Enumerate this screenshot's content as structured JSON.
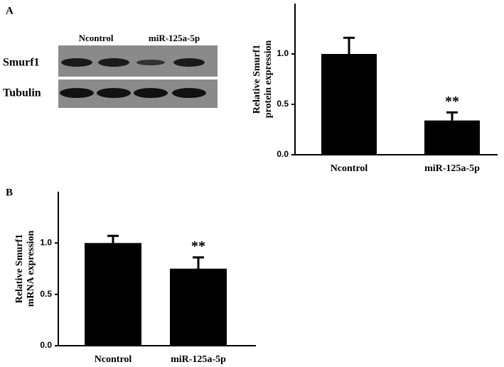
{
  "panel_labels": [
    "A",
    "B"
  ],
  "blot": {
    "column_labels": [
      "Ncontrol",
      "miR-125a-5p"
    ],
    "row_labels": [
      "Smurf1",
      "Tubulin"
    ]
  },
  "chart_data": [
    {
      "type": "bar",
      "ylabel": [
        "Relative Smurf1",
        "protein expression"
      ],
      "categories": [
        "Ncontrol",
        "miR-125a-5p"
      ],
      "values": [
        1.0,
        0.34
      ],
      "errors": [
        0.16,
        0.08
      ],
      "significance": [
        null,
        "**"
      ],
      "color": "#000000",
      "ylim": [
        0,
        1.5
      ],
      "yticks": [
        {
          "value": 0,
          "label": "0.0"
        },
        {
          "value": 0.5,
          "label": "0.5"
        },
        {
          "value": 1,
          "label": "1.0"
        }
      ]
    },
    {
      "type": "bar",
      "ylabel": [
        "Relative Smurf1",
        "mRNA expression"
      ],
      "categories": [
        "Ncontrol",
        "miR-125a-5p"
      ],
      "values": [
        1.0,
        0.75
      ],
      "errors": [
        0.07,
        0.11
      ],
      "significance": [
        null,
        "**"
      ],
      "color": "#000000",
      "ylim": [
        0,
        1.5
      ],
      "yticks": [
        {
          "value": 0,
          "label": "0.0"
        },
        {
          "value": 0.5,
          "label": "0.5"
        },
        {
          "value": 1,
          "label": "1.0"
        }
      ]
    }
  ]
}
